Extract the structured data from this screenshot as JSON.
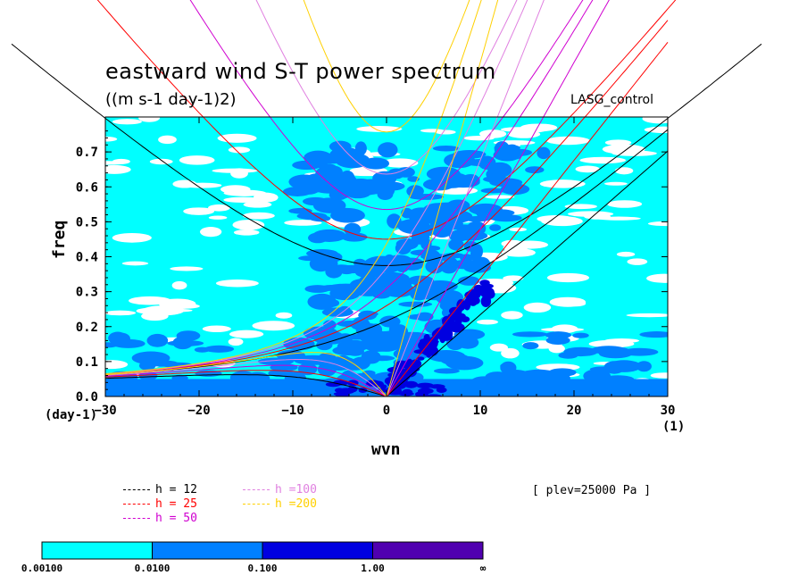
{
  "chart_data": {
    "type": "heatmap",
    "title": "eastward wind S-T power spectrum",
    "subtitle": "((m s-1 day-1)2)",
    "run_label": "LASG_control",
    "level_label": "[ plev=25000 Pa ]",
    "xlabel": "wvn",
    "ylabel": "freq",
    "x_unit_label": "(1)",
    "y_unit_label": "(day-1)",
    "xlim": [
      -30,
      30
    ],
    "ylim": [
      0,
      0.8
    ],
    "x_ticks": [
      -30,
      -20,
      -10,
      0,
      10,
      20,
      30
    ],
    "y_ticks": [
      0.0,
      0.1,
      0.2,
      0.3,
      0.4,
      0.5,
      0.6,
      0.7
    ],
    "x_tick_labels": [
      "−30",
      "−20",
      "−10",
      "0",
      "10",
      "20",
      "30"
    ],
    "y_tick_labels": [
      "0.0",
      "0.1",
      "0.2",
      "0.3",
      "0.4",
      "0.5",
      "0.6",
      "0.7"
    ],
    "colorbar": {
      "colors": [
        "#00ffff",
        "#0080ff",
        "#0000e0",
        "#5000b0"
      ],
      "labels": [
        "0.00100",
        "0.0100",
        "0.100",
        "1.00",
        "∞"
      ]
    },
    "dispersion_curves": [
      {
        "name": "h = 12",
        "h": 12,
        "color": "#000000"
      },
      {
        "name": "h = 25",
        "h": 25,
        "color": "#ff0000"
      },
      {
        "name": "h = 50",
        "h": 50,
        "color": "#d000d0"
      },
      {
        "name": "h =100",
        "h": 100,
        "color": "#e080e0"
      },
      {
        "name": "h =200",
        "h": 200,
        "color": "#ffd000"
      }
    ]
  }
}
